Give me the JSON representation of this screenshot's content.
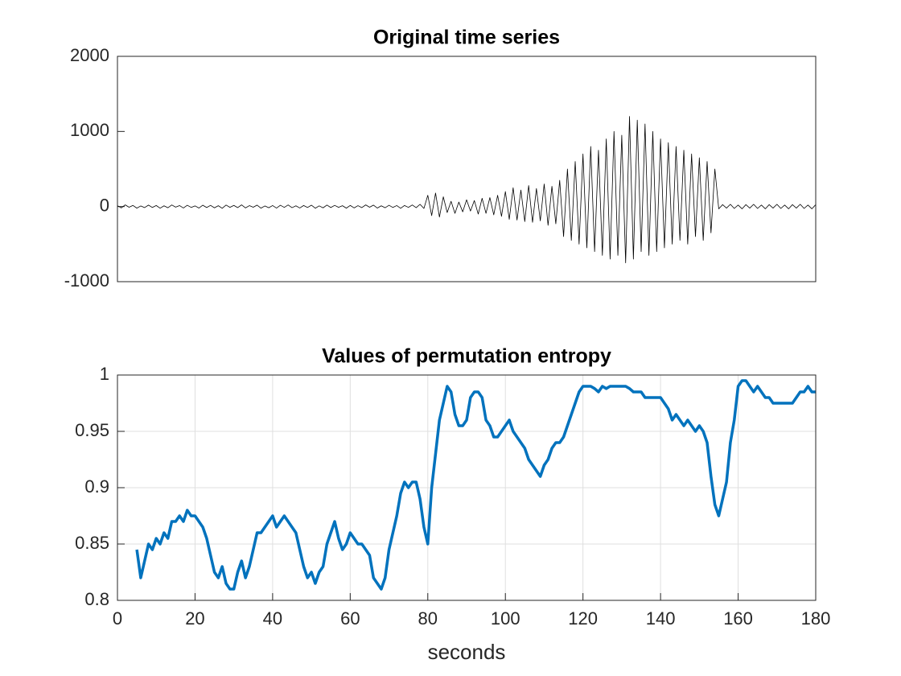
{
  "chart_data": [
    {
      "type": "line",
      "title": "Original time series",
      "x": [
        0,
        1,
        2,
        3,
        4,
        5,
        6,
        7,
        8,
        9,
        10,
        11,
        12,
        13,
        14,
        15,
        16,
        17,
        18,
        19,
        20,
        21,
        22,
        23,
        24,
        25,
        26,
        27,
        28,
        29,
        30,
        31,
        32,
        33,
        34,
        35,
        36,
        37,
        38,
        39,
        40,
        41,
        42,
        43,
        44,
        45,
        46,
        47,
        48,
        49,
        50,
        51,
        52,
        53,
        54,
        55,
        56,
        57,
        58,
        59,
        60,
        61,
        62,
        63,
        64,
        65,
        66,
        67,
        68,
        69,
        70,
        71,
        72,
        73,
        74,
        75,
        76,
        77,
        78,
        79,
        80,
        81,
        82,
        83,
        84,
        85,
        86,
        87,
        88,
        89,
        90,
        91,
        92,
        93,
        94,
        95,
        96,
        97,
        98,
        99,
        100,
        101,
        102,
        103,
        104,
        105,
        106,
        107,
        108,
        109,
        110,
        111,
        112,
        113,
        114,
        115,
        116,
        117,
        118,
        119,
        120,
        121,
        122,
        123,
        124,
        125,
        126,
        127,
        128,
        129,
        130,
        131,
        132,
        133,
        134,
        135,
        136,
        137,
        138,
        139,
        140,
        141,
        142,
        143,
        144,
        145,
        146,
        147,
        148,
        149,
        150,
        151,
        152,
        153,
        154,
        155,
        156,
        157,
        158,
        159,
        160,
        161,
        162,
        163,
        164,
        165,
        166,
        167,
        168,
        169,
        170,
        171,
        172,
        173,
        174,
        175,
        176,
        177,
        178,
        179,
        180
      ],
      "series": [
        {
          "color": "#000000",
          "values": [
            12,
            -18,
            22,
            -9,
            15,
            -21,
            8,
            -14,
            19,
            -12,
            14,
            -22,
            10,
            -16,
            21,
            -8,
            13,
            -19,
            17,
            -11,
            9,
            -20,
            18,
            -13,
            16,
            -17,
            11,
            -23,
            20,
            -10,
            15,
            -14,
            22,
            -18,
            12,
            -9,
            19,
            -21,
            8,
            -16,
            13,
            -20,
            17,
            -11,
            21,
            -15,
            10,
            -19,
            14,
            -12,
            18,
            -22,
            9,
            -17,
            20,
            -13,
            16,
            -10,
            11,
            -21,
            15,
            -18,
            12,
            -14,
            22,
            -9,
            19,
            -20,
            10,
            -16,
            17,
            -12,
            13,
            -23,
            14,
            -11,
            21,
            -15,
            30,
            -25,
            150,
            -120,
            180,
            -140,
            130,
            -80,
            70,
            -90,
            60,
            -70,
            90,
            -60,
            80,
            -100,
            110,
            -90,
            120,
            -110,
            150,
            -130,
            200,
            -170,
            250,
            -180,
            220,
            -200,
            280,
            -210,
            240,
            -190,
            300,
            -250,
            270,
            -230,
            350,
            -400,
            500,
            -450,
            600,
            -500,
            700,
            -550,
            800,
            -600,
            750,
            -650,
            900,
            -700,
            1000,
            -650,
            950,
            -750,
            1200,
            -700,
            1150,
            -600,
            1100,
            -650,
            1000,
            -600,
            900,
            -550,
            850,
            -500,
            800,
            -450,
            750,
            -500,
            700,
            -400,
            650,
            -450,
            600,
            -350,
            500,
            -30,
            25,
            -20,
            30,
            -25,
            20,
            -30,
            25,
            -20,
            30,
            -25,
            20,
            -30,
            25,
            -20,
            30,
            -25,
            20,
            -30,
            25,
            -20,
            30,
            -25,
            20,
            -30,
            25
          ]
        }
      ],
      "xlim": [
        0,
        180
      ],
      "ylim": [
        -1000,
        2000
      ],
      "yticks": [
        -1000,
        0,
        1000,
        2000
      ],
      "grid": false
    },
    {
      "type": "line",
      "title": "Values of permutation entropy",
      "x_label": "seconds",
      "x": [
        5,
        6,
        7,
        8,
        9,
        10,
        11,
        12,
        13,
        14,
        15,
        16,
        17,
        18,
        19,
        20,
        21,
        22,
        23,
        24,
        25,
        26,
        27,
        28,
        29,
        30,
        31,
        32,
        33,
        34,
        35,
        36,
        37,
        38,
        39,
        40,
        41,
        42,
        43,
        44,
        45,
        46,
        47,
        48,
        49,
        50,
        51,
        52,
        53,
        54,
        55,
        56,
        57,
        58,
        59,
        60,
        61,
        62,
        63,
        64,
        65,
        66,
        67,
        68,
        69,
        70,
        71,
        72,
        73,
        74,
        75,
        76,
        77,
        78,
        79,
        80,
        81,
        82,
        83,
        84,
        85,
        86,
        87,
        88,
        89,
        90,
        91,
        92,
        93,
        94,
        95,
        96,
        97,
        98,
        99,
        100,
        101,
        102,
        103,
        104,
        105,
        106,
        107,
        108,
        109,
        110,
        111,
        112,
        113,
        114,
        115,
        116,
        117,
        118,
        119,
        120,
        121,
        122,
        123,
        124,
        125,
        126,
        127,
        128,
        129,
        130,
        131,
        132,
        133,
        134,
        135,
        136,
        137,
        138,
        139,
        140,
        141,
        142,
        143,
        144,
        145,
        146,
        147,
        148,
        149,
        150,
        151,
        152,
        153,
        154,
        155,
        156,
        157,
        158,
        159,
        160,
        161,
        162,
        163,
        164,
        165,
        166,
        167,
        168,
        169,
        170,
        171,
        172,
        173,
        174,
        175,
        176,
        177,
        178,
        179,
        180
      ],
      "series": [
        {
          "color": "#0072bd",
          "values": [
            0.845,
            0.82,
            0.835,
            0.85,
            0.845,
            0.855,
            0.85,
            0.86,
            0.855,
            0.87,
            0.87,
            0.875,
            0.87,
            0.88,
            0.875,
            0.875,
            0.87,
            0.865,
            0.855,
            0.84,
            0.825,
            0.82,
            0.83,
            0.815,
            0.81,
            0.81,
            0.825,
            0.835,
            0.82,
            0.83,
            0.845,
            0.86,
            0.86,
            0.865,
            0.87,
            0.875,
            0.865,
            0.87,
            0.875,
            0.87,
            0.865,
            0.86,
            0.845,
            0.83,
            0.82,
            0.825,
            0.815,
            0.825,
            0.83,
            0.85,
            0.86,
            0.87,
            0.855,
            0.845,
            0.85,
            0.86,
            0.855,
            0.85,
            0.85,
            0.845,
            0.84,
            0.82,
            0.815,
            0.81,
            0.82,
            0.845,
            0.86,
            0.875,
            0.895,
            0.905,
            0.9,
            0.905,
            0.905,
            0.89,
            0.865,
            0.85,
            0.9,
            0.93,
            0.96,
            0.975,
            0.99,
            0.985,
            0.965,
            0.955,
            0.955,
            0.96,
            0.98,
            0.985,
            0.985,
            0.98,
            0.96,
            0.955,
            0.945,
            0.945,
            0.95,
            0.955,
            0.96,
            0.95,
            0.945,
            0.94,
            0.935,
            0.925,
            0.92,
            0.915,
            0.91,
            0.92,
            0.925,
            0.935,
            0.94,
            0.94,
            0.945,
            0.955,
            0.965,
            0.975,
            0.985,
            0.99,
            0.99,
            0.99,
            0.988,
            0.985,
            0.99,
            0.988,
            0.99,
            0.99,
            0.99,
            0.99,
            0.99,
            0.988,
            0.985,
            0.985,
            0.985,
            0.98,
            0.98,
            0.98,
            0.98,
            0.98,
            0.975,
            0.97,
            0.96,
            0.965,
            0.96,
            0.955,
            0.96,
            0.955,
            0.95,
            0.955,
            0.95,
            0.94,
            0.91,
            0.885,
            0.875,
            0.89,
            0.905,
            0.94,
            0.96,
            0.99,
            0.995,
            0.995,
            0.99,
            0.985,
            0.99,
            0.985,
            0.98,
            0.98,
            0.975,
            0.975,
            0.975,
            0.975,
            0.975,
            0.975,
            0.98,
            0.985,
            0.985,
            0.99,
            0.985,
            0.985
          ]
        }
      ],
      "xlim": [
        0,
        180
      ],
      "xticks": [
        0,
        20,
        40,
        60,
        80,
        100,
        120,
        140,
        160,
        180
      ],
      "ylim": [
        0.8,
        1
      ],
      "yticks": [
        0.8,
        0.85,
        0.9,
        0.95,
        1
      ],
      "grid": true
    }
  ]
}
